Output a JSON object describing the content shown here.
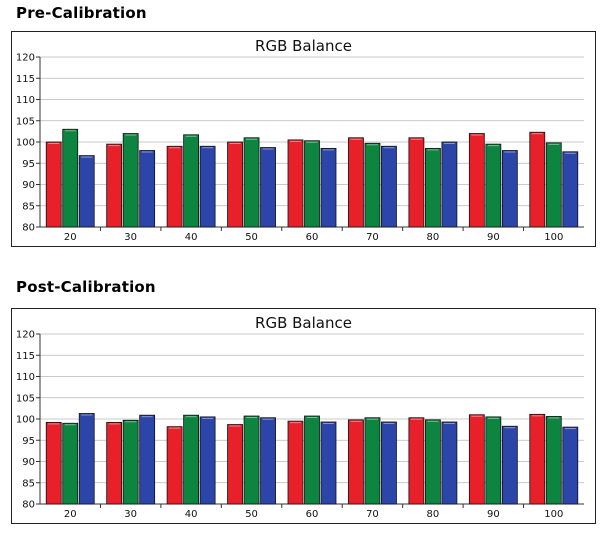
{
  "headings": {
    "pre": "Pre-Calibration",
    "post": "Post-Calibration"
  },
  "colors": {
    "red": "#e8202a",
    "green": "#0d8540",
    "blue": "#2c45a8"
  },
  "chart_data": [
    {
      "type": "bar",
      "title": "RGB Balance",
      "categories": [
        "20",
        "30",
        "40",
        "50",
        "60",
        "70",
        "80",
        "90",
        "100"
      ],
      "ylim": [
        80,
        120
      ],
      "yticks": [
        80,
        85,
        90,
        95,
        100,
        105,
        110,
        115,
        120
      ],
      "grid": true,
      "series": [
        {
          "color": "#e8202a",
          "values": [
            100,
            99.5,
            99,
            100,
            100.5,
            101,
            101,
            102,
            102.3
          ]
        },
        {
          "color": "#0d8540",
          "values": [
            103,
            102,
            101.7,
            101,
            100.3,
            99.7,
            98.5,
            99.5,
            99.8
          ]
        },
        {
          "color": "#2c45a8",
          "values": [
            96.8,
            98,
            99,
            98.7,
            98.5,
            99,
            100,
            98,
            97.7
          ]
        }
      ]
    },
    {
      "type": "bar",
      "title": "RGB Balance",
      "categories": [
        "20",
        "30",
        "40",
        "50",
        "60",
        "70",
        "80",
        "90",
        "100"
      ],
      "ylim": [
        80,
        120
      ],
      "yticks": [
        80,
        85,
        90,
        95,
        100,
        105,
        110,
        115,
        120
      ],
      "grid": true,
      "series": [
        {
          "color": "#e8202a",
          "values": [
            99.2,
            99.2,
            98.2,
            98.7,
            99.5,
            99.8,
            100.3,
            101,
            101.1
          ]
        },
        {
          "color": "#0d8540",
          "values": [
            99,
            99.7,
            100.9,
            100.7,
            100.7,
            100.3,
            99.8,
            100.5,
            100.6
          ]
        },
        {
          "color": "#2c45a8",
          "values": [
            101.3,
            100.9,
            100.5,
            100.3,
            99.3,
            99.3,
            99.3,
            98.3,
            98.1
          ]
        }
      ]
    }
  ]
}
